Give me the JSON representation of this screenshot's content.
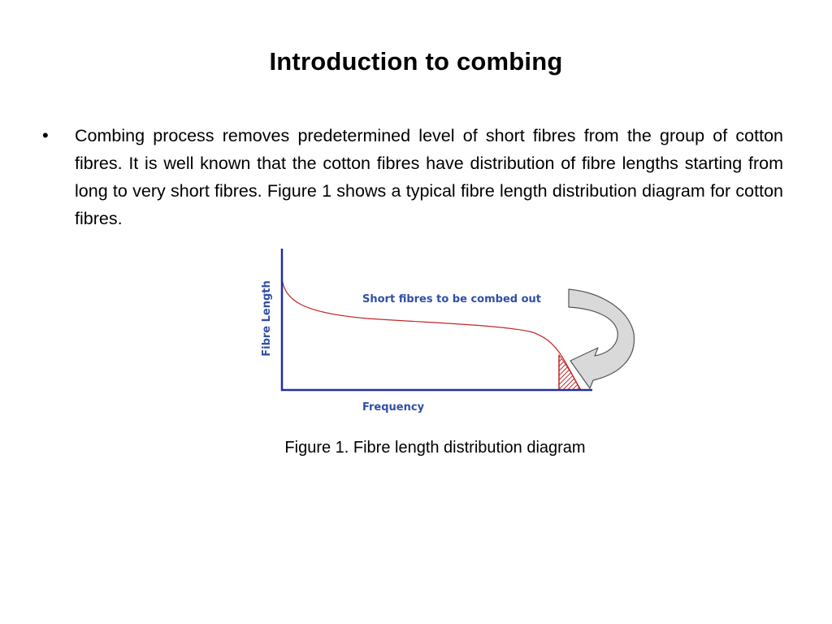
{
  "slide": {
    "title": "Introduction to combing",
    "bullets": [
      {
        "marker": "•",
        "text": "Combing process removes predetermined level of short fibres from the group of cotton fibres. It is well known that the cotton fibres have distribution of fibre lengths starting from long to very short fibres. Figure 1 shows a typical fibre length distribution diagram for cotton fibres."
      }
    ]
  },
  "figure": {
    "y_axis_label": "Fibre Length",
    "x_axis_label": "Frequency",
    "annotation": "Short fibres to be combed out",
    "caption": "Figure 1. Fibre length distribution diagram",
    "colors": {
      "axes": "#1f2f9e",
      "curve": "#c0282a",
      "label": "#2f4fa6",
      "arrow_fill": "#d9d9d9",
      "arrow_stroke": "#555555"
    }
  }
}
